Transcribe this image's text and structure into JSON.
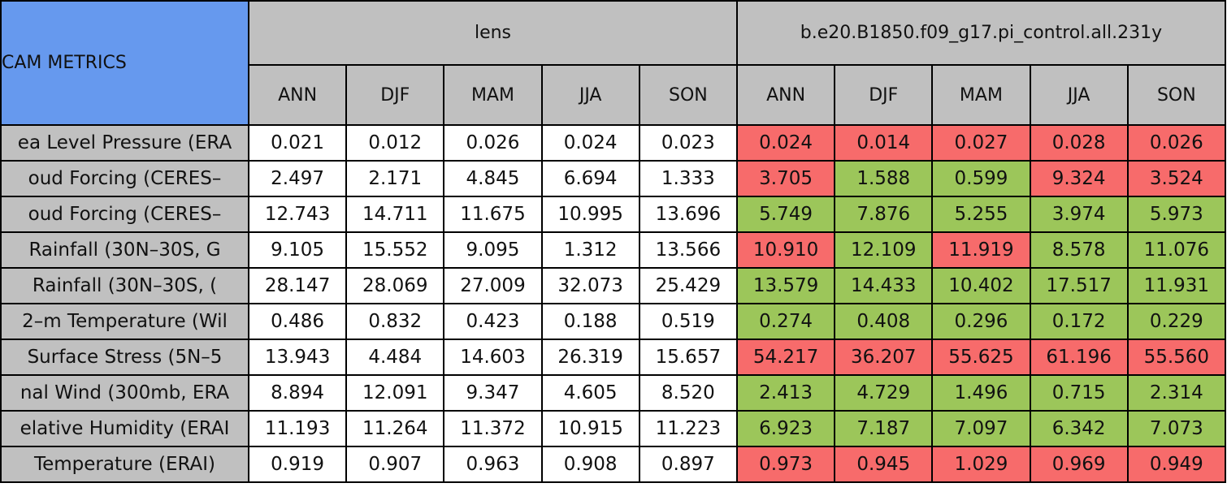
{
  "header": {
    "title": "CAM METRICS",
    "groups": [
      {
        "name": "lens",
        "seasons": [
          "ANN",
          "DJF",
          "MAM",
          "JJA",
          "SON"
        ]
      },
      {
        "name": "b.e20.B1850.f09_g17.pi_control.all.231y",
        "seasons": [
          "ANN",
          "DJF",
          "MAM",
          "JJA",
          "SON"
        ]
      }
    ]
  },
  "table": {
    "rows": [
      {
        "label": "ea Level Pressure (ERA",
        "values": [
          "0.021",
          "0.012",
          "0.026",
          "0.024",
          "0.023",
          "0.024",
          "0.014",
          "0.027",
          "0.028",
          "0.026"
        ],
        "colors": [
          "#f76b6b",
          "#f76b6b",
          "#f76b6b",
          "#f76b6b",
          "#f76b6b"
        ]
      },
      {
        "label": "oud Forcing (CERES–",
        "values": [
          "2.497",
          "2.171",
          "4.845",
          "6.694",
          "1.333",
          "3.705",
          "1.588",
          "0.599",
          "9.324",
          "3.524"
        ],
        "colors": [
          "#f76b6b",
          "#9cc65a",
          "#9cc65a",
          "#f76b6b",
          "#f76b6b"
        ]
      },
      {
        "label": "oud Forcing (CERES–",
        "values": [
          "12.743",
          "14.711",
          "11.675",
          "10.995",
          "13.696",
          "5.749",
          "7.876",
          "5.255",
          "3.974",
          "5.973"
        ],
        "colors": [
          "#9cc65a",
          "#9cc65a",
          "#9cc65a",
          "#9cc65a",
          "#9cc65a"
        ]
      },
      {
        "label": "Rainfall (30N–30S, G",
        "values": [
          "9.105",
          "15.552",
          "9.095",
          "1.312",
          "13.566",
          "10.910",
          "12.109",
          "11.919",
          "8.578",
          "11.076"
        ],
        "colors": [
          "#f76b6b",
          "#9cc65a",
          "#f76b6b",
          "#9cc65a",
          "#9cc65a"
        ]
      },
      {
        "label": "Rainfall (30N–30S, (",
        "values": [
          "28.147",
          "28.069",
          "27.009",
          "32.073",
          "25.429",
          "13.579",
          "14.433",
          "10.402",
          "17.517",
          "11.931"
        ],
        "colors": [
          "#9cc65a",
          "#9cc65a",
          "#9cc65a",
          "#9cc65a",
          "#9cc65a"
        ]
      },
      {
        "label": "2–m Temperature (Wil",
        "values": [
          "0.486",
          "0.832",
          "0.423",
          "0.188",
          "0.519",
          "0.274",
          "0.408",
          "0.296",
          "0.172",
          "0.229"
        ],
        "colors": [
          "#9cc65a",
          "#9cc65a",
          "#9cc65a",
          "#9cc65a",
          "#9cc65a"
        ]
      },
      {
        "label": "Surface Stress (5N–5",
        "values": [
          "13.943",
          "4.484",
          "14.603",
          "26.319",
          "15.657",
          "54.217",
          "36.207",
          "55.625",
          "61.196",
          "55.560"
        ],
        "colors": [
          "#f76b6b",
          "#f76b6b",
          "#f76b6b",
          "#f76b6b",
          "#f76b6b"
        ]
      },
      {
        "label": "nal Wind (300mb, ERA",
        "values": [
          "8.894",
          "12.091",
          "9.347",
          "4.605",
          "8.520",
          "2.413",
          "4.729",
          "1.496",
          "0.715",
          "2.314"
        ],
        "colors": [
          "#9cc65a",
          "#9cc65a",
          "#9cc65a",
          "#9cc65a",
          "#9cc65a"
        ]
      },
      {
        "label": "elative Humidity (ERAI",
        "values": [
          "11.193",
          "11.264",
          "11.372",
          "10.915",
          "11.223",
          "6.923",
          "7.187",
          "7.097",
          "6.342",
          "7.073"
        ],
        "colors": [
          "#9cc65a",
          "#9cc65a",
          "#9cc65a",
          "#9cc65a",
          "#9cc65a"
        ]
      },
      {
        "label": "Temperature (ERAI)",
        "values": [
          "0.919",
          "0.907",
          "0.963",
          "0.908",
          "0.897",
          "0.973",
          "0.945",
          "1.029",
          "0.969",
          "0.949"
        ],
        "colors": [
          "#f76b6b",
          "#f76b6b",
          "#f76b6b",
          "#f76b6b",
          "#f76b6b"
        ]
      }
    ]
  }
}
